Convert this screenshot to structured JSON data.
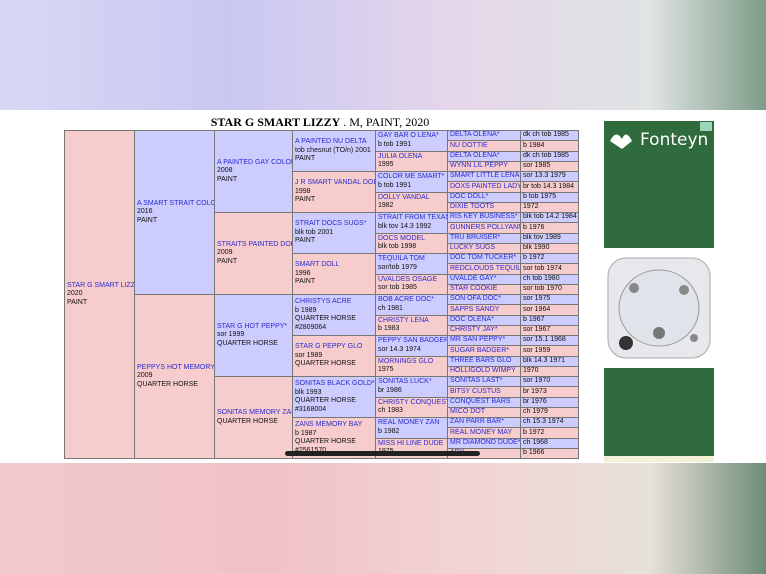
{
  "header": {
    "title": "STAR G SMART LIZZY",
    "subtitle": ". M, PAINT, 2020"
  },
  "pedigree": [
    [
      {
        "lines": [
          "STAR G SMART LIZZY",
          "2020",
          "PAINT"
        ]
      }
    ],
    [
      {
        "lines": [
          "A SMART STRAIT COLOR",
          "2016",
          "PAINT"
        ]
      },
      {
        "lines": [
          "PEPPYS HOT MEMORY",
          "2009",
          "QUARTER HORSE"
        ]
      }
    ],
    [
      {
        "lines": [
          "A PAINTED GAY COLOR",
          "2008",
          "PAINT"
        ]
      },
      {
        "lines": [
          "STRAITS PAINTED DOLL",
          "2009",
          "PAINT"
        ]
      },
      {
        "lines": [
          "STAR G HOT PEPPY*",
          "sor 1999",
          "QUARTER HORSE"
        ]
      },
      {
        "lines": [
          "SONITAS MEMORY ZAN",
          "QUARTER HORSE"
        ]
      }
    ],
    [
      {
        "lines": [
          "A PAINTED NU DELTA",
          "tob chesnut (TO/n) 2001",
          "PAINT"
        ]
      },
      {
        "lines": [
          "J R SMART VANDAL DOLL",
          "1998",
          "PAINT"
        ]
      },
      {
        "lines": [
          "STRAIT DOCS SUGS*",
          "blk tob 2001",
          "PAINT"
        ]
      },
      {
        "lines": [
          "SMART DOLL",
          "1996",
          "PAINT"
        ]
      },
      {
        "lines": [
          "CHRISTYS ACRE",
          "b 1989",
          "QUARTER HORSE",
          "#2809064"
        ]
      },
      {
        "lines": [
          "STAR G PEPPY GLO",
          "sor 1989",
          "QUARTER HORSE"
        ]
      },
      {
        "lines": [
          "SONITAS BLACK GOLD*",
          "blk 1993",
          "QUARTER HORSE",
          "#3168004"
        ]
      },
      {
        "lines": [
          "ZANS MEMORY BAY",
          "b 1987",
          "QUARTER HORSE",
          "#2561570"
        ]
      }
    ],
    [
      {
        "lines": [
          "GAY BAR O LENA*",
          "b tob 1991"
        ]
      },
      {
        "lines": [
          "JULIA OLENA",
          "1995"
        ]
      },
      {
        "lines": [
          "COLOR ME SMART*",
          "b tob 1991"
        ]
      },
      {
        "lines": [
          "DOLLY VANDAL",
          "1982"
        ]
      },
      {
        "lines": [
          "STRAIT FROM TEXAS*",
          "blk tov 14.3 1992"
        ]
      },
      {
        "lines": [
          "DOCS MODEL",
          "blk tob 1998"
        ]
      },
      {
        "lines": [
          "TEQUILA TOM",
          "sor/tob 1979"
        ]
      },
      {
        "lines": [
          "UVALDES OSAGE",
          "sor tob 1985"
        ]
      },
      {
        "lines": [
          "BOB ACRE DOC*",
          "ch 1981"
        ]
      },
      {
        "lines": [
          "CHRISTY LENA",
          "b 1983"
        ]
      },
      {
        "lines": [
          "PEPPY SAN BADGER*",
          "sor 14.3 1974"
        ]
      },
      {
        "lines": [
          "MORNINGS GLO",
          "1975"
        ]
      },
      {
        "lines": [
          "SONITAS LUCK*",
          "br 1986"
        ]
      },
      {
        "lines": [
          "CHRISTY CONQUEST",
          "ch 1983"
        ]
      },
      {
        "lines": [
          "REAL MONEY ZAN",
          "b 1982"
        ]
      },
      {
        "lines": [
          "MISS HI LINE DUDE",
          "1975"
        ]
      }
    ],
    [
      {
        "name": "DELTA OLENA*",
        "detail": "dk ch tob 1985"
      },
      {
        "name": "NU DOTTIE",
        "detail": "b 1984"
      },
      {
        "name": "DELTA OLENA*",
        "detail": "dk ch tob 1985"
      },
      {
        "name": "WYNN LIL PEPPY",
        "detail": "sor 1985"
      },
      {
        "name": "SMART LITTLE LENA*",
        "detail": "sor 13.3 1979"
      },
      {
        "name": "DOXS PAINTED LADY",
        "detail": "br tob 14.3 1984"
      },
      {
        "name": "DOC DOLL*",
        "detail": "b tob 1975"
      },
      {
        "name": "DIXIE TOOTS",
        "detail": "1972"
      },
      {
        "name": "RIS KEY BUSINESS*",
        "detail": "blk tob 14.2 1984"
      },
      {
        "name": "GUNNERS POLLYANNA",
        "detail": "b 1976"
      },
      {
        "name": "TRU BRUISER*",
        "detail": "blk tov 1989"
      },
      {
        "name": "LUCKY SUGS",
        "detail": "blk 1990"
      },
      {
        "name": "DOC TOM TUCKER*",
        "detail": "b 1972"
      },
      {
        "name": "REDCLOUDS TEQUILA",
        "detail": "sor tob 1974"
      },
      {
        "name": "UVALDE GAY*",
        "detail": "ch tob 1980"
      },
      {
        "name": "STAR COOKIE",
        "detail": "sor tob 1970"
      },
      {
        "name": "SON OFA DOC*",
        "detail": "sor 1975"
      },
      {
        "name": "SAPPS SANDY",
        "detail": "sor 1964"
      },
      {
        "name": "DOC OLENA*",
        "detail": "b 1967"
      },
      {
        "name": "CHRISTY JAY*",
        "detail": "sor 1967"
      },
      {
        "name": "MR SAN PEPPY*",
        "detail": "sor 15.1 1968"
      },
      {
        "name": "SUGAR BADGER*",
        "detail": "sor 1959"
      },
      {
        "name": "THREE BARS GLO",
        "detail": "blk 14.3 1971"
      },
      {
        "name": "HOLLIGOLD WIMPY",
        "detail": "1970"
      },
      {
        "name": "SONITAS LAST*",
        "detail": "sor 1970"
      },
      {
        "name": "BITSY CUSTUS",
        "detail": "br 1973"
      },
      {
        "name": "CONQUEST BARS",
        "detail": "br 1976"
      },
      {
        "name": "MICO DOT",
        "detail": "ch 1979"
      },
      {
        "name": "ZAN PARR BAR*",
        "detail": "ch 15.3 1974"
      },
      {
        "name": "REAL MONEY MAY",
        "detail": "b 1972"
      },
      {
        "name": "MR DIAMOND DUDE*",
        "detail": "ch 1968"
      },
      {
        "name": "ADY",
        "detail": "b 1966"
      }
    ]
  ],
  "ad": {
    "brand": "Fonteyn"
  }
}
